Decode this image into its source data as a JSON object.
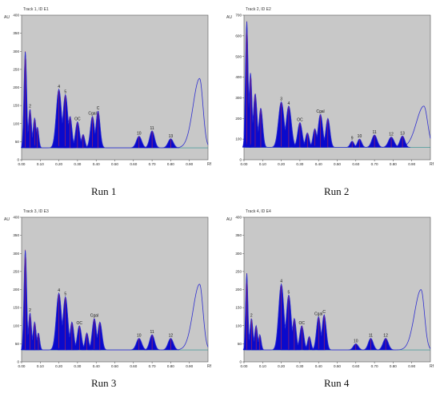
{
  "colors": {
    "plot_bg": "#c8c8c8",
    "fill": "#0a0acc",
    "curve": "#2f2fd0",
    "baseline": "#2a8f8f",
    "marker": "#e03030"
  },
  "chart_data": [
    {
      "type": "area",
      "title": "Track 1, ID E1",
      "ylabel": "AU",
      "xlabel": "Rf",
      "xlim": [
        0,
        1.0
      ],
      "ylim": [
        0,
        400
      ],
      "xticks": [
        "0.00",
        "0.10",
        "0.20",
        "0.30",
        "0.40",
        "0.50",
        "0.60",
        "0.70",
        "0.80",
        "0.90"
      ],
      "yticks": [
        "0",
        "50",
        "100",
        "150",
        "200",
        "250",
        "300",
        "350",
        "400"
      ],
      "baseline": 33,
      "peaks": [
        {
          "label": "",
          "x": 0.02,
          "h": 300,
          "w": 0.007
        },
        {
          "label": "2",
          "x": 0.045,
          "h": 140,
          "w": 0.008
        },
        {
          "label": "",
          "x": 0.07,
          "h": 115,
          "w": 0.008
        },
        {
          "label": "",
          "x": 0.085,
          "h": 90,
          "w": 0.007
        },
        {
          "label": "4",
          "x": 0.2,
          "h": 195,
          "w": 0.014
        },
        {
          "label": "5",
          "x": 0.235,
          "h": 180,
          "w": 0.013
        },
        {
          "label": "",
          "x": 0.26,
          "h": 120,
          "w": 0.01
        },
        {
          "label": "OC",
          "x": 0.3,
          "h": 105,
          "w": 0.011
        },
        {
          "label": "",
          "x": 0.33,
          "h": 70,
          "w": 0.009
        },
        {
          "label": "Cgal",
          "x": 0.38,
          "h": 120,
          "w": 0.011
        },
        {
          "label": "C",
          "x": 0.41,
          "h": 135,
          "w": 0.011
        },
        {
          "label": "10",
          "x": 0.63,
          "h": 65,
          "w": 0.014
        },
        {
          "label": "11",
          "x": 0.7,
          "h": 80,
          "w": 0.013
        },
        {
          "label": "13",
          "x": 0.8,
          "h": 58,
          "w": 0.014
        }
      ],
      "end_curve": {
        "x": 0.955,
        "h": 225,
        "rise_w": 0.035,
        "fall_w": 0.018
      }
    },
    {
      "type": "area",
      "title": "Track 2, ID E2",
      "ylabel": "AU",
      "xlabel": "Rf",
      "xlim": [
        0,
        1.0
      ],
      "ylim": [
        0,
        700
      ],
      "xticks": [
        "0.00",
        "0.10",
        "0.20",
        "0.30",
        "0.40",
        "0.50",
        "0.60",
        "0.70",
        "0.80",
        "0.90"
      ],
      "yticks": [
        "0",
        "100",
        "200",
        "300",
        "400",
        "500",
        "600",
        "700"
      ],
      "baseline": 60,
      "peaks": [
        {
          "label": "",
          "x": 0.015,
          "h": 670,
          "w": 0.007
        },
        {
          "label": "",
          "x": 0.035,
          "h": 420,
          "w": 0.008
        },
        {
          "label": "",
          "x": 0.06,
          "h": 320,
          "w": 0.01
        },
        {
          "label": "",
          "x": 0.09,
          "h": 250,
          "w": 0.01
        },
        {
          "label": "3",
          "x": 0.2,
          "h": 280,
          "w": 0.015
        },
        {
          "label": "4",
          "x": 0.24,
          "h": 260,
          "w": 0.014
        },
        {
          "label": "OC",
          "x": 0.3,
          "h": 180,
          "w": 0.012
        },
        {
          "label": "",
          "x": 0.34,
          "h": 130,
          "w": 0.01
        },
        {
          "label": "",
          "x": 0.38,
          "h": 150,
          "w": 0.01
        },
        {
          "label": "Cgal",
          "x": 0.41,
          "h": 220,
          "w": 0.012
        },
        {
          "label": "",
          "x": 0.45,
          "h": 200,
          "w": 0.011
        },
        {
          "label": "9",
          "x": 0.58,
          "h": 90,
          "w": 0.01
        },
        {
          "label": "10",
          "x": 0.62,
          "h": 100,
          "w": 0.011
        },
        {
          "label": "11",
          "x": 0.7,
          "h": 120,
          "w": 0.014
        },
        {
          "label": "12",
          "x": 0.79,
          "h": 110,
          "w": 0.015
        },
        {
          "label": "13",
          "x": 0.85,
          "h": 115,
          "w": 0.013
        }
      ],
      "end_curve": {
        "x": 0.965,
        "h": 260,
        "rise_w": 0.04,
        "fall_w": 0.02
      }
    },
    {
      "type": "area",
      "title": "Track 3, ID E3",
      "ylabel": "AU",
      "xlabel": "Rf",
      "xlim": [
        0,
        1.0
      ],
      "ylim": [
        0,
        400
      ],
      "xticks": [
        "0.00",
        "0.10",
        "0.20",
        "0.30",
        "0.40",
        "0.50",
        "0.60",
        "0.70",
        "0.80",
        "0.90"
      ],
      "yticks": [
        "0",
        "50",
        "100",
        "150",
        "200",
        "250",
        "300",
        "350",
        "400"
      ],
      "baseline": 33,
      "peaks": [
        {
          "label": "",
          "x": 0.02,
          "h": 310,
          "w": 0.007
        },
        {
          "label": "2",
          "x": 0.045,
          "h": 135,
          "w": 0.008
        },
        {
          "label": "",
          "x": 0.07,
          "h": 110,
          "w": 0.008
        },
        {
          "label": "",
          "x": 0.09,
          "h": 80,
          "w": 0.007
        },
        {
          "label": "4",
          "x": 0.2,
          "h": 190,
          "w": 0.014
        },
        {
          "label": "5",
          "x": 0.235,
          "h": 180,
          "w": 0.013
        },
        {
          "label": "",
          "x": 0.27,
          "h": 110,
          "w": 0.01
        },
        {
          "label": "OC",
          "x": 0.31,
          "h": 100,
          "w": 0.011
        },
        {
          "label": "",
          "x": 0.35,
          "h": 80,
          "w": 0.009
        },
        {
          "label": "Cgal",
          "x": 0.39,
          "h": 120,
          "w": 0.011
        },
        {
          "label": "",
          "x": 0.42,
          "h": 110,
          "w": 0.011
        },
        {
          "label": "10",
          "x": 0.63,
          "h": 65,
          "w": 0.014
        },
        {
          "label": "11",
          "x": 0.7,
          "h": 75,
          "w": 0.013
        },
        {
          "label": "12",
          "x": 0.8,
          "h": 65,
          "w": 0.014
        }
      ],
      "end_curve": {
        "x": 0.955,
        "h": 215,
        "rise_w": 0.035,
        "fall_w": 0.018
      }
    },
    {
      "type": "area",
      "title": "Track 4, ID E4",
      "ylabel": "AU",
      "xlabel": "Rf",
      "xlim": [
        0,
        1.0
      ],
      "ylim": [
        0,
        400
      ],
      "xticks": [
        "0.00",
        "0.10",
        "0.20",
        "0.30",
        "0.40",
        "0.50",
        "0.60",
        "0.70",
        "0.80",
        "0.90"
      ],
      "yticks": [
        "0",
        "50",
        "100",
        "150",
        "200",
        "250",
        "300",
        "350",
        "400"
      ],
      "baseline": 33,
      "peaks": [
        {
          "label": "",
          "x": 0.015,
          "h": 245,
          "w": 0.006
        },
        {
          "label": "2",
          "x": 0.04,
          "h": 120,
          "w": 0.008
        },
        {
          "label": "",
          "x": 0.065,
          "h": 100,
          "w": 0.008
        },
        {
          "label": "",
          "x": 0.085,
          "h": 75,
          "w": 0.007
        },
        {
          "label": "4",
          "x": 0.2,
          "h": 215,
          "w": 0.014
        },
        {
          "label": "5",
          "x": 0.24,
          "h": 185,
          "w": 0.013
        },
        {
          "label": "",
          "x": 0.27,
          "h": 120,
          "w": 0.01
        },
        {
          "label": "OC",
          "x": 0.31,
          "h": 100,
          "w": 0.011
        },
        {
          "label": "",
          "x": 0.35,
          "h": 70,
          "w": 0.009
        },
        {
          "label": "Cgal",
          "x": 0.4,
          "h": 125,
          "w": 0.011
        },
        {
          "label": "C",
          "x": 0.43,
          "h": 130,
          "w": 0.011
        },
        {
          "label": "10",
          "x": 0.6,
          "h": 50,
          "w": 0.013
        },
        {
          "label": "11",
          "x": 0.68,
          "h": 65,
          "w": 0.013
        },
        {
          "label": "12",
          "x": 0.76,
          "h": 65,
          "w": 0.014
        }
      ],
      "end_curve": {
        "x": 0.95,
        "h": 200,
        "rise_w": 0.035,
        "fall_w": 0.018
      }
    }
  ],
  "captions": [
    "Run 1",
    "Run 2",
    "Run 3",
    "Run 4"
  ]
}
